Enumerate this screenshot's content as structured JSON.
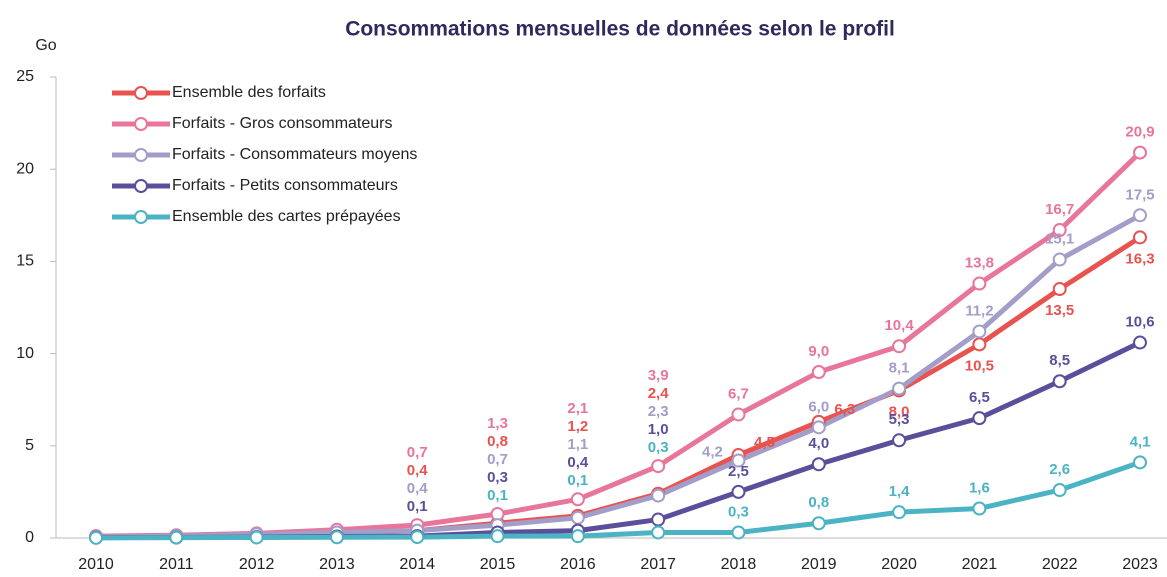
{
  "chart_data": {
    "type": "line",
    "title": "Consommations mensuelles de données selon le profil",
    "y_label": "Go",
    "categories": [
      "2010",
      "2011",
      "2012",
      "2013",
      "2014",
      "2015",
      "2016",
      "2017",
      "2018",
      "2019",
      "2020",
      "2021",
      "2022",
      "2023"
    ],
    "ylim": [
      0,
      25
    ],
    "yticks": [
      0,
      5,
      10,
      15,
      20,
      25
    ],
    "legend": "upper left",
    "series": [
      {
        "name": "Ensemble des forfaits",
        "color": "#e8524f",
        "values": [
          0.05,
          0.1,
          0.15,
          0.25,
          0.4,
          0.8,
          1.2,
          2.4,
          4.5,
          6.3,
          8.0,
          10.5,
          13.5,
          16.3
        ],
        "value_labels": [
          null,
          null,
          null,
          null,
          "0,4",
          "0,8",
          "1,2",
          "2,4",
          "4,5",
          "6,3",
          "8,0",
          "10,5",
          "13,5",
          "16,3"
        ]
      },
      {
        "name": "Forfaits - Gros consommateurs",
        "color": "#e8759a",
        "values": [
          0.1,
          0.15,
          0.25,
          0.45,
          0.7,
          1.3,
          2.1,
          3.9,
          6.7,
          9.0,
          10.4,
          13.8,
          16.7,
          20.9
        ],
        "value_labels": [
          null,
          null,
          null,
          null,
          "0,7",
          "1,3",
          "2,1",
          "3,9",
          "6,7",
          "9,0",
          "10,4",
          "13,8",
          "16,7",
          "20,9"
        ]
      },
      {
        "name": "Forfaits - Consommateurs moyens",
        "color": "#a29dc9",
        "values": [
          0.05,
          0.1,
          0.2,
          0.3,
          0.4,
          0.7,
          1.1,
          2.3,
          4.2,
          6.0,
          8.1,
          11.2,
          15.1,
          17.5
        ],
        "value_labels": [
          null,
          null,
          null,
          null,
          "0,4",
          "0,7",
          "1,1",
          "2,3",
          "4,2",
          "6,0",
          "8,1",
          "11,2",
          "15,1",
          "17,5"
        ]
      },
      {
        "name": "Forfaits - Petits consommateurs",
        "color": "#5b4f9c",
        "values": [
          0.02,
          0.03,
          0.05,
          0.08,
          0.1,
          0.3,
          0.4,
          1.0,
          2.5,
          4.0,
          5.3,
          6.5,
          8.5,
          10.6
        ],
        "value_labels": [
          null,
          null,
          null,
          null,
          "0,1",
          "0,3",
          "0,4",
          "1,0",
          "2,5",
          "4,0",
          "5,3",
          "6,5",
          "8,5",
          "10,6"
        ]
      },
      {
        "name": "Ensemble des cartes prépayées",
        "color": "#4bb3c4",
        "values": [
          0.01,
          0.02,
          0.03,
          0.04,
          0.05,
          0.1,
          0.1,
          0.3,
          0.3,
          0.8,
          1.4,
          1.6,
          2.6,
          4.1
        ],
        "value_labels": [
          null,
          null,
          null,
          null,
          null,
          "0,1",
          "0,1",
          "0,3",
          "0,3",
          "0,8",
          "1,4",
          "1,6",
          "2,6",
          "4,1"
        ]
      }
    ]
  }
}
